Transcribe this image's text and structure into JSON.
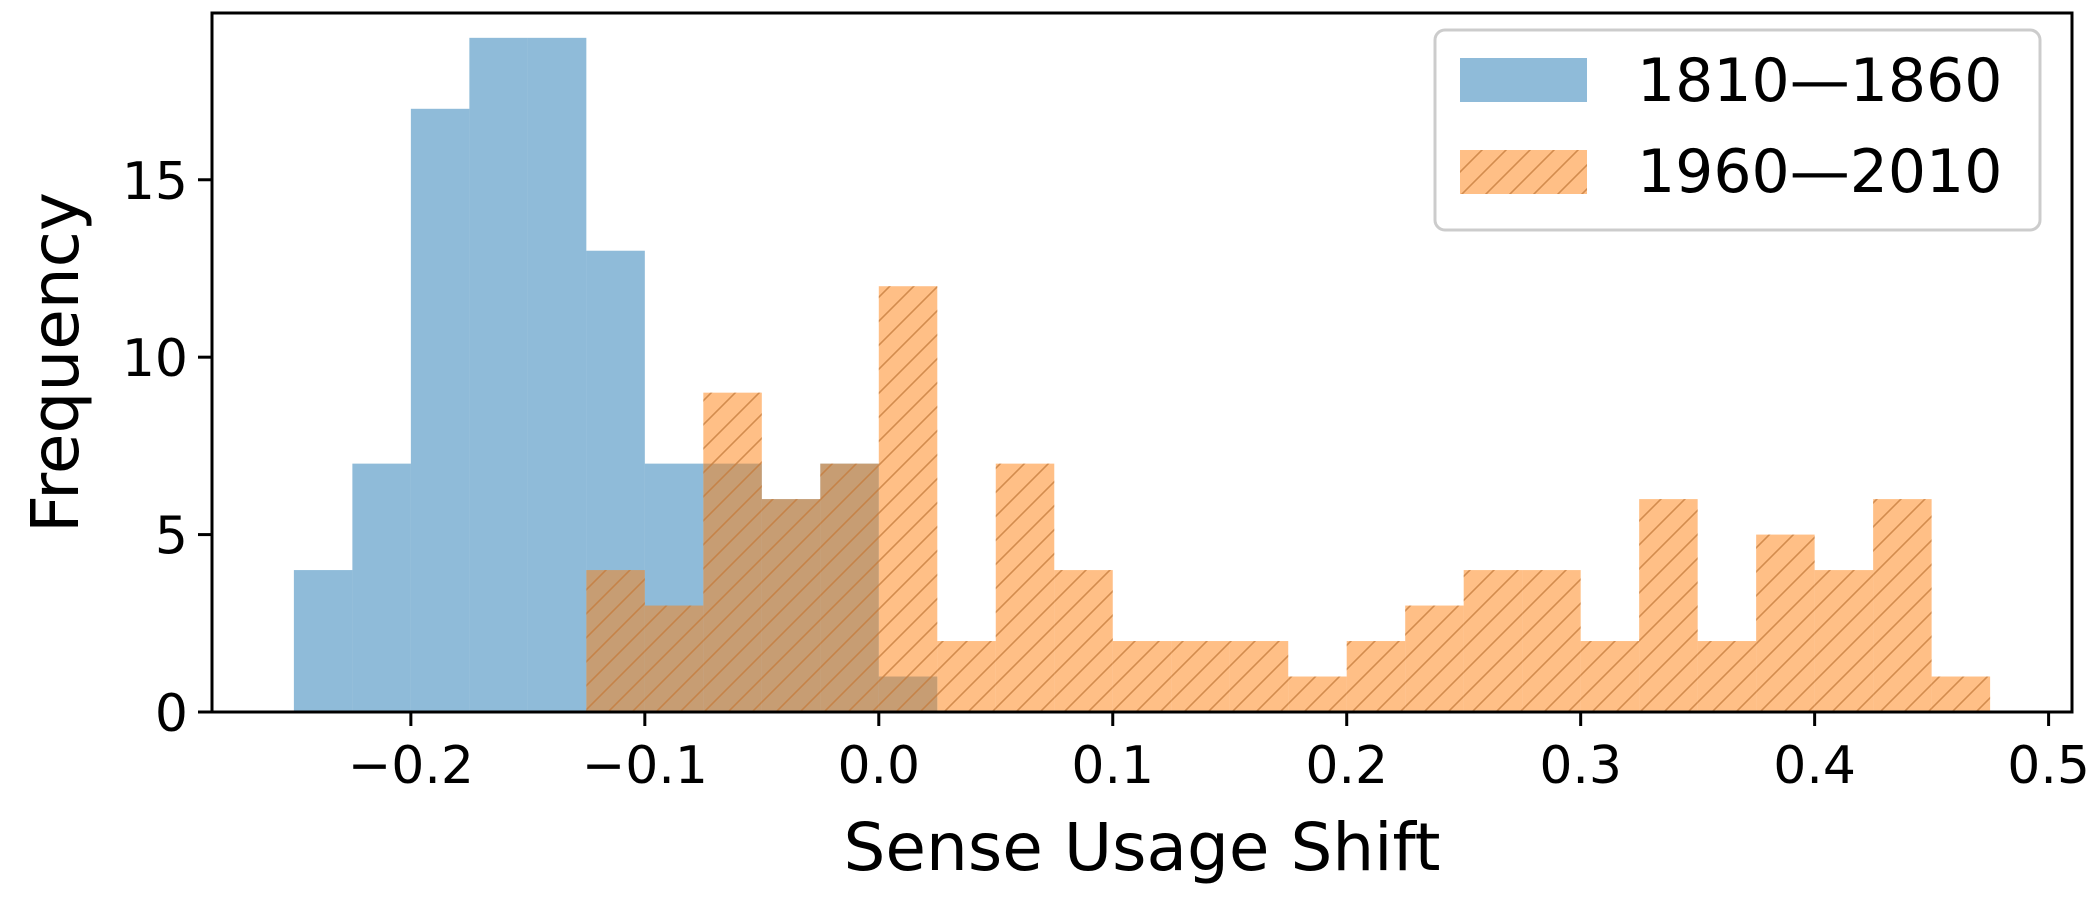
{
  "chart_data": {
    "type": "bar",
    "xlabel": "Sense Usage Shift",
    "ylabel": "Frequency",
    "xlim": [
      -0.285,
      0.51
    ],
    "ylim": [
      0,
      19.7
    ],
    "xticks": [
      -0.2,
      -0.1,
      0.0,
      0.1,
      0.2,
      0.3,
      0.4,
      0.5
    ],
    "xtick_labels": [
      "−0.2",
      "−0.1",
      "0.0",
      "0.1",
      "0.2",
      "0.3",
      "0.4",
      "0.5"
    ],
    "yticks": [
      0,
      5,
      10,
      15
    ],
    "ytick_labels": [
      "0",
      "5",
      "10",
      "15"
    ],
    "grid": false,
    "legend_position": "top-right",
    "series": [
      {
        "name": "1810—1860",
        "color": "#1f77b4",
        "alpha": 0.5,
        "hatch": false,
        "bin_start": -0.25,
        "bin_width": 0.025,
        "counts": [
          4,
          7,
          17,
          19,
          19,
          13,
          7,
          7,
          6,
          7,
          1
        ]
      },
      {
        "name": "1960—2010",
        "color": "#ff7f0e",
        "alpha": 0.5,
        "hatch": true,
        "bin_start": -0.125,
        "bin_width": 0.025,
        "counts": [
          4,
          3,
          9,
          6,
          7,
          12,
          2,
          7,
          4,
          2,
          2,
          2,
          1,
          2,
          3,
          4,
          4,
          2,
          6,
          2,
          5,
          4,
          6,
          1
        ]
      }
    ]
  }
}
